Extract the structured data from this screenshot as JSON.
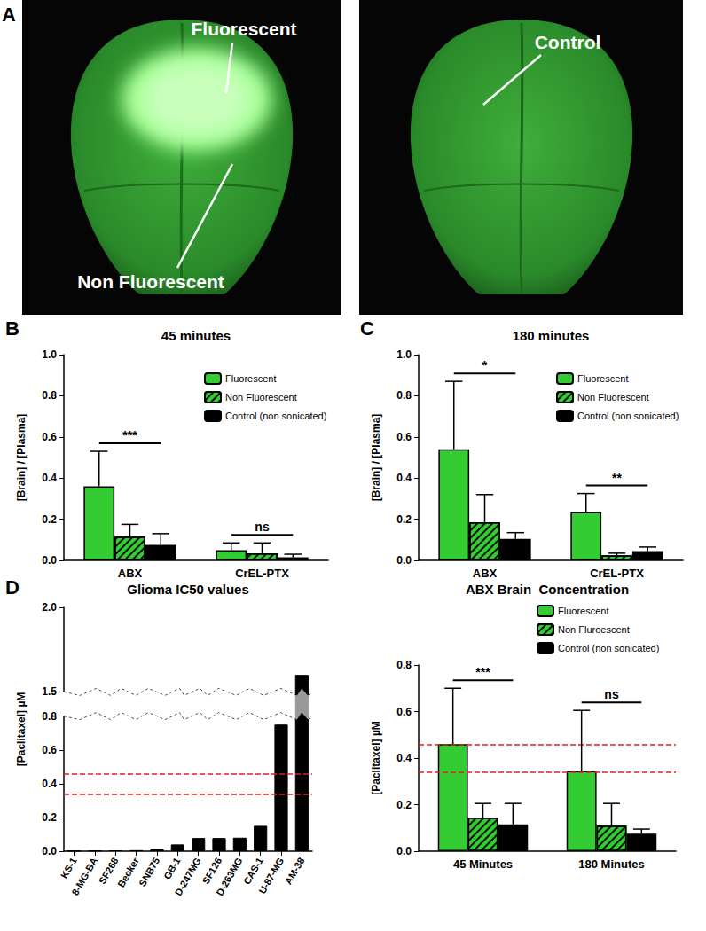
{
  "panel_a": {
    "panel_label": "A",
    "images": [
      {
        "labels": [
          "Fluorescent",
          "Non Fluorescent"
        ]
      },
      {
        "labels": [
          "Control"
        ]
      }
    ]
  },
  "chart_data": [
    {
      "type": "bar",
      "panel_label": "B",
      "title": "45 minutes",
      "ylabel": "[Brain] / [Plasma]",
      "categories": [
        "ABX",
        "CrEL-PTX"
      ],
      "series": [
        {
          "name": "Fluorescent",
          "color": "#33cc33",
          "values": [
            0.36,
            0.05
          ],
          "errors": [
            0.17,
            0.035
          ]
        },
        {
          "name": "Non Fluorescent",
          "color": "#33cc33",
          "values": [
            0.115,
            0.035
          ],
          "errors": [
            0.06,
            0.05
          ]
        },
        {
          "name": "Control (non sonicated)",
          "color": "#000000",
          "values": [
            0.075,
            0.015
          ],
          "errors": [
            0.055,
            0.015
          ]
        }
      ],
      "significance": [
        "***",
        "ns"
      ],
      "ylim": [
        0,
        1.0
      ],
      "yticks": [
        {
          "value": 0,
          "label": "0.0"
        },
        0.2,
        0.4,
        0.6,
        0.8,
        {
          "value": 1,
          "label": "1.0"
        }
      ],
      "grid": false,
      "legend": "upper right"
    },
    {
      "type": "bar",
      "panel_label": "C",
      "title": "180 minutes",
      "ylabel": "[Brain] / [Plasma]",
      "categories": [
        "ABX",
        "CrEL-PTX"
      ],
      "series": [
        {
          "name": "Fluorescent",
          "color": "#33cc33",
          "values": [
            0.54,
            0.235
          ],
          "errors": [
            0.33,
            0.09
          ]
        },
        {
          "name": "Non Fluorescent",
          "color": "#33cc33",
          "values": [
            0.185,
            0.025
          ],
          "errors": [
            0.135,
            0.01
          ]
        },
        {
          "name": "Control (non sonicated)",
          "color": "#000000",
          "values": [
            0.105,
            0.045
          ],
          "errors": [
            0.03,
            0.02
          ]
        }
      ],
      "significance": [
        "*",
        "**"
      ],
      "ylim": [
        0,
        1.0
      ],
      "yticks": [
        {
          "value": 0,
          "label": "0.0"
        },
        0.2,
        0.4,
        0.6,
        0.8,
        {
          "value": 1,
          "label": "1.0"
        }
      ],
      "grid": false,
      "legend": "upper right"
    },
    {
      "type": "bar",
      "panel_label": "D",
      "title": "Glioma IC50 values",
      "ylabel": "[Paclitaxel] µM",
      "categories": [
        "KS-1",
        "8-MG-BA",
        "SF268",
        "Becker",
        "SNB75",
        "GB-1",
        "D-247MG",
        "SF126",
        "D-263MG",
        "CAS-1",
        "U-87-MG",
        "AM-38"
      ],
      "values": [
        0.002,
        0.003,
        0.005,
        0.006,
        0.015,
        0.04,
        0.078,
        0.078,
        0.08,
        0.15,
        0.75,
        1.6
      ],
      "color": "#000000",
      "reference_lines": [
        0.46,
        0.345
      ],
      "y_break": [
        0.8,
        1.5
      ],
      "ylim": [
        0,
        2.0
      ],
      "yticks": [
        {
          "value": 0,
          "label": "0.0"
        },
        0.2,
        0.4,
        0.6,
        0.8,
        1.5,
        {
          "value": 2,
          "label": "2.0"
        }
      ],
      "grid": false
    },
    {
      "type": "bar",
      "title": "ABX Brain  Concentration",
      "ylabel": "[Paclitaxel] µM",
      "categories": [
        "45 Minutes",
        "180 Minutes"
      ],
      "series": [
        {
          "name": "Fluorescent",
          "color": "#33cc33",
          "values": [
            0.46,
            0.345
          ],
          "errors": [
            0.24,
            0.26
          ]
        },
        {
          "name": "Non Fluroescent",
          "color": "#33cc33",
          "values": [
            0.145,
            0.11
          ],
          "errors": [
            0.06,
            0.095
          ]
        },
        {
          "name": "Control (non sonicated)",
          "color": "#000000",
          "values": [
            0.115,
            0.075
          ],
          "errors": [
            0.09,
            0.02
          ]
        }
      ],
      "significance": [
        "***",
        "ns"
      ],
      "reference_lines": [
        0.46,
        0.345
      ],
      "ylim": [
        0,
        0.8
      ],
      "yticks": [
        {
          "value": 0,
          "label": "0.0"
        },
        0.2,
        0.4,
        0.6,
        0.8
      ],
      "grid": false,
      "legend": "upper right"
    }
  ]
}
